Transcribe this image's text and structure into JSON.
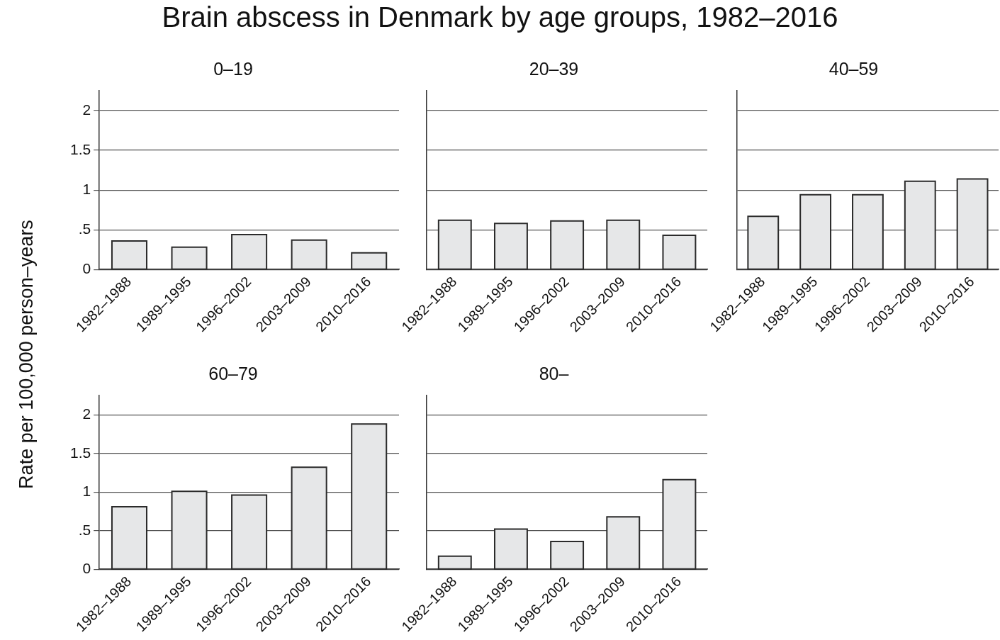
{
  "chart_data": [
    {
      "type": "bar",
      "title": "0–19",
      "annotations": [
        "Brain abscess in Denmark by age groups, 1982–2016"
      ],
      "ylabel": "Rate per 100,000 person–years",
      "categories": [
        "1982–1988",
        "1989–1995",
        "1996–2002",
        "2003–2009",
        "2010–2016"
      ],
      "values": [
        0.36,
        0.28,
        0.44,
        0.37,
        0.21
      ],
      "color": "#e6e7e8",
      "ylim": [
        0,
        2.25
      ],
      "yticks": [
        0,
        {
          "value": 0.5,
          "label": ".5"
        },
        1,
        1.5,
        2
      ],
      "grid": "y",
      "legend": false
    },
    {
      "type": "bar",
      "title": "20–39",
      "categories": [
        "1982–1988",
        "1989–1995",
        "1996–2002",
        "2003–2009",
        "2010–2016"
      ],
      "values": [
        0.62,
        0.58,
        0.61,
        0.62,
        0.43
      ],
      "color": "#e6e7e8",
      "ylim": [
        0,
        2.25
      ],
      "yticks": [
        0,
        0.5,
        1,
        1.5,
        2
      ],
      "grid": "y",
      "legend": false,
      "tick_labels": "x"
    },
    {
      "type": "bar",
      "title": "40–59",
      "categories": [
        "1982–1988",
        "1989–1995",
        "1996–2002",
        "2003–2009",
        "2010–2016"
      ],
      "values": [
        0.67,
        0.94,
        0.94,
        1.11,
        1.14
      ],
      "color": "#e6e7e8",
      "ylim": [
        0,
        2.25
      ],
      "yticks": [
        0,
        0.5,
        1,
        1.5,
        2
      ],
      "grid": "y",
      "legend": false,
      "tick_labels": "x"
    },
    {
      "type": "bar",
      "title": "60–79",
      "categories": [
        "1982–1988",
        "1989–1995",
        "1996–2002",
        "2003–2009",
        "2010–2016"
      ],
      "values": [
        0.81,
        1.01,
        0.96,
        1.32,
        1.88
      ],
      "color": "#e6e7e8",
      "ylim": [
        0,
        2.25
      ],
      "yticks": [
        0,
        {
          "value": 0.5,
          "label": ".5"
        },
        1,
        1.5,
        2
      ],
      "grid": "y",
      "legend": false
    },
    {
      "type": "bar",
      "title": "80–",
      "categories": [
        "1982–1988",
        "1989–1995",
        "1996–2002",
        "2003–2009",
        "2010–2016"
      ],
      "values": [
        0.17,
        0.52,
        0.36,
        0.68,
        1.16
      ],
      "color": "#e6e7e8",
      "ylim": [
        0,
        2.25
      ],
      "yticks": [
        0,
        0.5,
        1,
        1.5,
        2
      ],
      "grid": "y",
      "legend": false,
      "tick_labels": "x"
    }
  ]
}
